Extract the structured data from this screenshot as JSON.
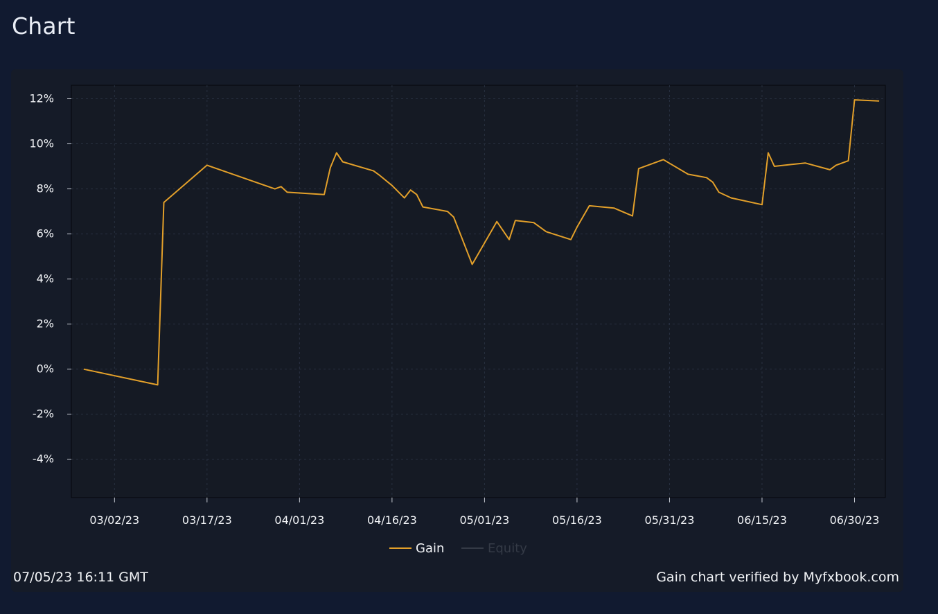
{
  "page": {
    "title": "Chart"
  },
  "footer": {
    "timestamp": "07/05/23 16:11 GMT",
    "verified": "Gain chart verified by Myfxbook.com"
  },
  "colors": {
    "page_bg": "#111a30",
    "card_bg": "#151b28",
    "plot_bg": "#151a24",
    "gain_line": "#e3a02a",
    "equity_legend": "#343a46",
    "text": "#f1f3f6"
  },
  "chart_data": {
    "type": "line",
    "title": "",
    "xlabel": "",
    "ylabel": "",
    "grid": true,
    "legend": "bottom-center",
    "ylim": [
      -5.7,
      12.6
    ],
    "xlim": [
      "2023-02-23",
      "2023-07-05"
    ],
    "yticks": [
      12,
      10,
      8,
      6,
      4,
      2,
      0,
      -2,
      -4
    ],
    "ytick_labels": [
      "12%",
      "10%",
      "8%",
      "6%",
      "4%",
      "2%",
      "0%",
      "-2%",
      "-4%"
    ],
    "xticks": [
      "2023-03-02",
      "2023-03-17",
      "2023-04-01",
      "2023-04-16",
      "2023-05-01",
      "2023-05-16",
      "2023-05-31",
      "2023-06-15",
      "2023-06-30"
    ],
    "xtick_labels": [
      "03/02/23",
      "03/17/23",
      "04/01/23",
      "04/16/23",
      "05/01/23",
      "05/16/23",
      "05/31/23",
      "06/15/23",
      "06/30/23"
    ],
    "series": [
      {
        "name": "Gain",
        "x": [
          "2023-02-25",
          "2023-03-09",
          "2023-03-10",
          "2023-03-17",
          "2023-03-28",
          "2023-03-29",
          "2023-03-30",
          "2023-04-05",
          "2023-04-06",
          "2023-04-07",
          "2023-04-08",
          "2023-04-13",
          "2023-04-14",
          "2023-04-16",
          "2023-04-18",
          "2023-04-19",
          "2023-04-20",
          "2023-04-21",
          "2023-04-25",
          "2023-04-26",
          "2023-04-29",
          "2023-05-03",
          "2023-05-05",
          "2023-05-06",
          "2023-05-09",
          "2023-05-11",
          "2023-05-15",
          "2023-05-16",
          "2023-05-18",
          "2023-05-22",
          "2023-05-25",
          "2023-05-26",
          "2023-05-30",
          "2023-06-03",
          "2023-06-06",
          "2023-06-07",
          "2023-06-08",
          "2023-06-10",
          "2023-06-15",
          "2023-06-16",
          "2023-06-17",
          "2023-06-22",
          "2023-06-26",
          "2023-06-27",
          "2023-06-28",
          "2023-06-29",
          "2023-06-30",
          "2023-07-04"
        ],
        "values": [
          0.0,
          -0.7,
          7.4,
          9.05,
          8.0,
          8.1,
          7.85,
          7.75,
          8.95,
          9.6,
          9.2,
          8.8,
          8.6,
          8.15,
          7.6,
          7.95,
          7.75,
          7.2,
          7.0,
          6.75,
          4.65,
          6.55,
          5.75,
          6.6,
          6.5,
          6.1,
          5.75,
          6.3,
          7.25,
          7.15,
          6.8,
          8.9,
          9.3,
          8.65,
          8.5,
          8.3,
          7.85,
          7.6,
          7.3,
          9.6,
          9.0,
          9.15,
          8.85,
          9.05,
          9.15,
          9.25,
          11.95,
          11.9
        ]
      },
      {
        "name": "Equity",
        "x": [],
        "values": []
      }
    ]
  }
}
